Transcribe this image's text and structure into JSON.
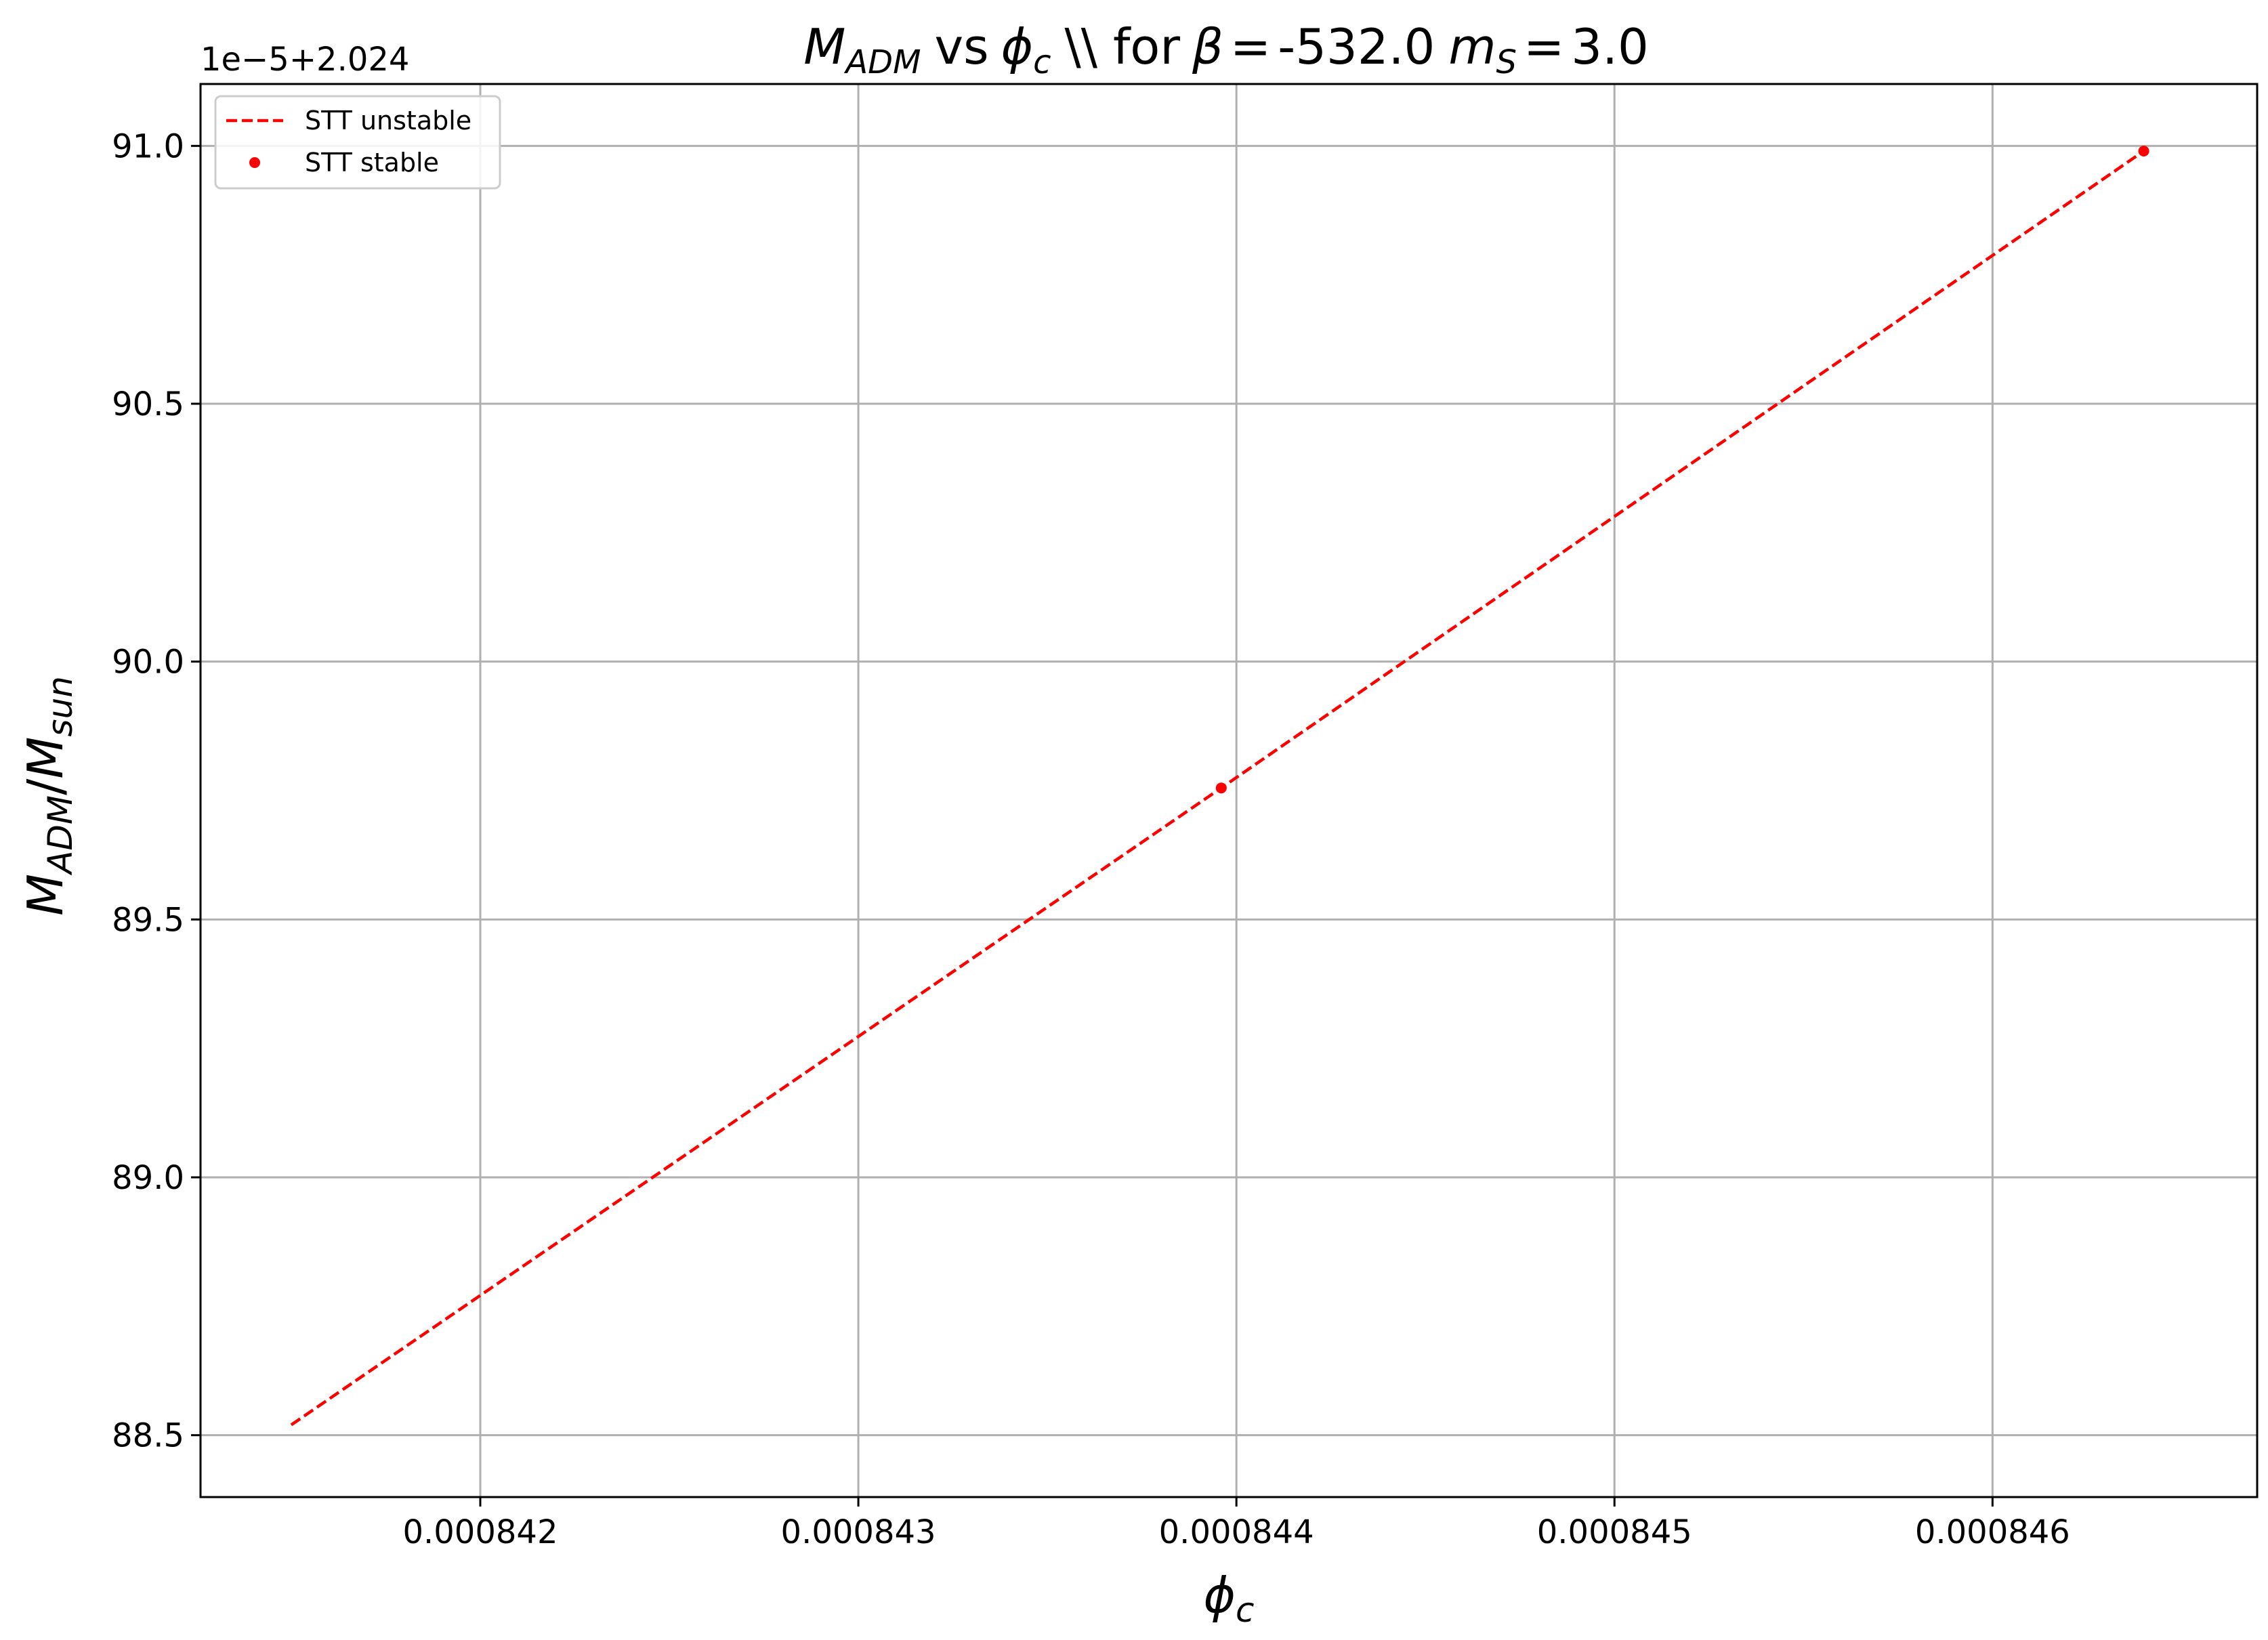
{
  "chart_data": {
    "type": "line",
    "title": "$M_{ADM}$ vs $\\phi_c$ \\\\ for $\\beta = $-532.0 $m_S = $3.0",
    "title_parts": {
      "mass_symbol": "M",
      "mass_subscript": "ADM",
      "vs_word": "vs",
      "phi_symbol": "ϕ",
      "phi_subscript": "c",
      "middle_text": "\\\\ for",
      "beta_symbol": "β",
      "equals": "=",
      "beta_value": "-532.0",
      "ms_symbol": "m",
      "ms_subscript": "S",
      "ms_value": "3.0"
    },
    "xlabel": "ϕc",
    "xlabel_parts": {
      "symbol": "ϕ",
      "subscript": "c"
    },
    "ylabel": "M_ADM/M_sun",
    "ylabel_parts": {
      "symbol1": "M",
      "sub1": "ADM",
      "slash": "/",
      "symbol2": "M",
      "sub2": "sun"
    },
    "y_offset_label": "1e−5+2.024",
    "xlim": [
      0.00084126,
      0.0008467
    ],
    "ylim": [
      88.38,
      91.12
    ],
    "xticks": [
      0.000842,
      0.000843,
      0.000844,
      0.000845,
      0.000846
    ],
    "xtick_labels": [
      "0.000842",
      "0.000843",
      "0.000844",
      "0.000845",
      "0.000846"
    ],
    "yticks": [
      88.5,
      89.0,
      89.5,
      90.0,
      90.5,
      91.0
    ],
    "ytick_labels": [
      "88.5",
      "89.0",
      "89.5",
      "90.0",
      "90.5",
      "91.0"
    ],
    "grid": true,
    "legend_position": "top-left",
    "series": [
      {
        "name": "STT unstable",
        "style": "dashed",
        "color": "#ff0000",
        "points": [
          {
            "x": 0.0008415,
            "y": 88.52
          },
          {
            "x": 0.00084396,
            "y": 89.755
          },
          {
            "x": 0.0008464,
            "y": 90.99
          }
        ]
      },
      {
        "name": "STT stable",
        "style": "markers",
        "color": "#ff0000",
        "points": [
          {
            "x": 0.00084396,
            "y": 89.755
          },
          {
            "x": 0.0008464,
            "y": 90.99
          }
        ]
      }
    ]
  }
}
